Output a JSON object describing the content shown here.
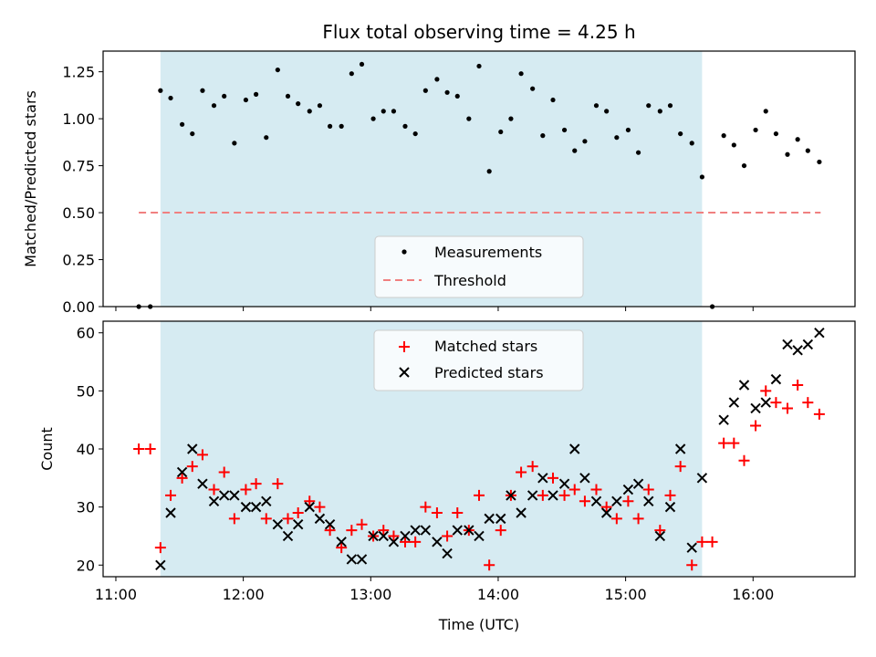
{
  "chart_data": [
    {
      "type": "scatter",
      "title": "Flux total observing time = 4.25 h",
      "xlabel": "",
      "ylabel": "Matched/Predicted stars",
      "ylim": [
        0,
        1.36
      ],
      "yticks": [
        "0.00",
        "0.25",
        "0.50",
        "0.75",
        "1.00",
        "1.25"
      ],
      "ytick_values": [
        0,
        0.25,
        0.5,
        0.75,
        1.0,
        1.25
      ],
      "shaded_span_hours": [
        11.35,
        15.6
      ],
      "legend": [
        {
          "label": "Measurements",
          "marker": "dot",
          "color": "#000000"
        },
        {
          "label": "Threshold",
          "marker": "dashed-line",
          "color": "#f08080"
        }
      ],
      "threshold": {
        "value": 0.5,
        "x_range_hours": [
          11.18,
          16.53
        ],
        "color": "#f08080"
      },
      "series": [
        {
          "name": "Measurements",
          "color": "#000000",
          "points": [
            [
              11.18,
              0.0
            ],
            [
              11.27,
              0.0
            ],
            [
              11.35,
              1.15
            ],
            [
              11.43,
              1.11
            ],
            [
              11.52,
              0.97
            ],
            [
              11.6,
              0.92
            ],
            [
              11.68,
              1.15
            ],
            [
              11.77,
              1.07
            ],
            [
              11.85,
              1.12
            ],
            [
              11.93,
              0.87
            ],
            [
              12.02,
              1.1
            ],
            [
              12.1,
              1.13
            ],
            [
              12.18,
              0.9
            ],
            [
              12.27,
              1.26
            ],
            [
              12.35,
              1.12
            ],
            [
              12.43,
              1.08
            ],
            [
              12.52,
              1.04
            ],
            [
              12.6,
              1.07
            ],
            [
              12.68,
              0.96
            ],
            [
              12.77,
              0.96
            ],
            [
              12.85,
              1.24
            ],
            [
              12.93,
              1.29
            ],
            [
              13.02,
              1.0
            ],
            [
              13.1,
              1.04
            ],
            [
              13.18,
              1.04
            ],
            [
              13.27,
              0.96
            ],
            [
              13.35,
              0.92
            ],
            [
              13.43,
              1.15
            ],
            [
              13.52,
              1.21
            ],
            [
              13.6,
              1.14
            ],
            [
              13.68,
              1.12
            ],
            [
              13.77,
              1.0
            ],
            [
              13.85,
              1.28
            ],
            [
              13.93,
              0.72
            ],
            [
              14.02,
              0.93
            ],
            [
              14.1,
              1.0
            ],
            [
              14.18,
              1.24
            ],
            [
              14.27,
              1.16
            ],
            [
              14.35,
              0.91
            ],
            [
              14.43,
              1.1
            ],
            [
              14.52,
              0.94
            ],
            [
              14.6,
              0.83
            ],
            [
              14.68,
              0.88
            ],
            [
              14.77,
              1.07
            ],
            [
              14.85,
              1.04
            ],
            [
              14.93,
              0.9
            ],
            [
              15.02,
              0.94
            ],
            [
              15.1,
              0.82
            ],
            [
              15.18,
              1.07
            ],
            [
              15.27,
              1.04
            ],
            [
              15.35,
              1.07
            ],
            [
              15.43,
              0.92
            ],
            [
              15.52,
              0.87
            ],
            [
              15.6,
              0.69
            ],
            [
              15.68,
              0.0
            ],
            [
              15.77,
              0.91
            ],
            [
              15.85,
              0.86
            ],
            [
              15.93,
              0.75
            ],
            [
              16.02,
              0.94
            ],
            [
              16.1,
              1.04
            ],
            [
              16.18,
              0.92
            ],
            [
              16.27,
              0.81
            ],
            [
              16.35,
              0.89
            ],
            [
              16.43,
              0.83
            ],
            [
              16.52,
              0.77
            ]
          ]
        }
      ]
    },
    {
      "type": "scatter",
      "title": "",
      "xlabel": "Time (UTC)",
      "ylabel": "Count",
      "ylim": [
        18,
        62
      ],
      "yticks": [
        "20",
        "30",
        "40",
        "50",
        "60"
      ],
      "ytick_values": [
        20,
        30,
        40,
        50,
        60
      ],
      "xlim_hours": [
        10.9,
        16.8
      ],
      "xticks": [
        "11:00",
        "12:00",
        "13:00",
        "14:00",
        "15:00",
        "16:00"
      ],
      "xtick_values": [
        11,
        12,
        13,
        14,
        15,
        16
      ],
      "shaded_span_hours": [
        11.35,
        15.6
      ],
      "legend": [
        {
          "label": "Matched stars",
          "marker": "plus",
          "color": "#ff0000"
        },
        {
          "label": "Predicted stars",
          "marker": "x",
          "color": "#000000"
        }
      ],
      "series": [
        {
          "name": "Matched stars",
          "color": "#ff0000",
          "marker": "plus",
          "points": [
            [
              11.18,
              40
            ],
            [
              11.27,
              40
            ],
            [
              11.35,
              23
            ],
            [
              11.43,
              32
            ],
            [
              11.52,
              35
            ],
            [
              11.6,
              37
            ],
            [
              11.68,
              39
            ],
            [
              11.77,
              33
            ],
            [
              11.85,
              36
            ],
            [
              11.93,
              28
            ],
            [
              12.02,
              33
            ],
            [
              12.1,
              34
            ],
            [
              12.18,
              28
            ],
            [
              12.27,
              34
            ],
            [
              12.35,
              28
            ],
            [
              12.43,
              29
            ],
            [
              12.52,
              31
            ],
            [
              12.6,
              30
            ],
            [
              12.68,
              26
            ],
            [
              12.77,
              23
            ],
            [
              12.85,
              26
            ],
            [
              12.93,
              27
            ],
            [
              13.02,
              25
            ],
            [
              13.1,
              26
            ],
            [
              13.18,
              25
            ],
            [
              13.27,
              24
            ],
            [
              13.35,
              24
            ],
            [
              13.43,
              30
            ],
            [
              13.52,
              29
            ],
            [
              13.6,
              25
            ],
            [
              13.68,
              29
            ],
            [
              13.77,
              26
            ],
            [
              13.85,
              32
            ],
            [
              13.93,
              20
            ],
            [
              14.02,
              26
            ],
            [
              14.1,
              32
            ],
            [
              14.18,
              36
            ],
            [
              14.27,
              37
            ],
            [
              14.35,
              32
            ],
            [
              14.43,
              35
            ],
            [
              14.52,
              32
            ],
            [
              14.6,
              33
            ],
            [
              14.68,
              31
            ],
            [
              14.77,
              33
            ],
            [
              14.85,
              30
            ],
            [
              14.93,
              28
            ],
            [
              15.02,
              31
            ],
            [
              15.1,
              28
            ],
            [
              15.18,
              33
            ],
            [
              15.27,
              26
            ],
            [
              15.35,
              32
            ],
            [
              15.43,
              37
            ],
            [
              15.52,
              20
            ],
            [
              15.6,
              24
            ],
            [
              15.68,
              24
            ],
            [
              15.77,
              41
            ],
            [
              15.85,
              41
            ],
            [
              15.93,
              38
            ],
            [
              16.02,
              44
            ],
            [
              16.1,
              50
            ],
            [
              16.18,
              48
            ],
            [
              16.27,
              47
            ],
            [
              16.35,
              51
            ],
            [
              16.43,
              48
            ],
            [
              16.52,
              46
            ]
          ]
        },
        {
          "name": "Predicted stars",
          "color": "#000000",
          "marker": "x",
          "points": [
            [
              11.35,
              20
            ],
            [
              11.43,
              29
            ],
            [
              11.52,
              36
            ],
            [
              11.6,
              40
            ],
            [
              11.68,
              34
            ],
            [
              11.77,
              31
            ],
            [
              11.85,
              32
            ],
            [
              11.93,
              32
            ],
            [
              12.02,
              30
            ],
            [
              12.1,
              30
            ],
            [
              12.18,
              31
            ],
            [
              12.27,
              27
            ],
            [
              12.35,
              25
            ],
            [
              12.43,
              27
            ],
            [
              12.52,
              30
            ],
            [
              12.6,
              28
            ],
            [
              12.68,
              27
            ],
            [
              12.77,
              24
            ],
            [
              12.85,
              21
            ],
            [
              12.93,
              21
            ],
            [
              13.02,
              25
            ],
            [
              13.1,
              25
            ],
            [
              13.18,
              24
            ],
            [
              13.27,
              25
            ],
            [
              13.35,
              26
            ],
            [
              13.43,
              26
            ],
            [
              13.52,
              24
            ],
            [
              13.6,
              22
            ],
            [
              13.68,
              26
            ],
            [
              13.77,
              26
            ],
            [
              13.85,
              25
            ],
            [
              13.93,
              28
            ],
            [
              14.02,
              28
            ],
            [
              14.1,
              32
            ],
            [
              14.18,
              29
            ],
            [
              14.27,
              32
            ],
            [
              14.35,
              35
            ],
            [
              14.43,
              32
            ],
            [
              14.52,
              34
            ],
            [
              14.6,
              40
            ],
            [
              14.68,
              35
            ],
            [
              14.77,
              31
            ],
            [
              14.85,
              29
            ],
            [
              14.93,
              31
            ],
            [
              15.02,
              33
            ],
            [
              15.1,
              34
            ],
            [
              15.18,
              31
            ],
            [
              15.27,
              25
            ],
            [
              15.35,
              30
            ],
            [
              15.43,
              40
            ],
            [
              15.52,
              23
            ],
            [
              15.6,
              35
            ],
            [
              15.77,
              45
            ],
            [
              15.85,
              48
            ],
            [
              15.93,
              51
            ],
            [
              16.02,
              47
            ],
            [
              16.1,
              48
            ],
            [
              16.18,
              52
            ],
            [
              16.27,
              58
            ],
            [
              16.35,
              57
            ],
            [
              16.43,
              58
            ],
            [
              16.52,
              60
            ]
          ]
        }
      ]
    }
  ]
}
